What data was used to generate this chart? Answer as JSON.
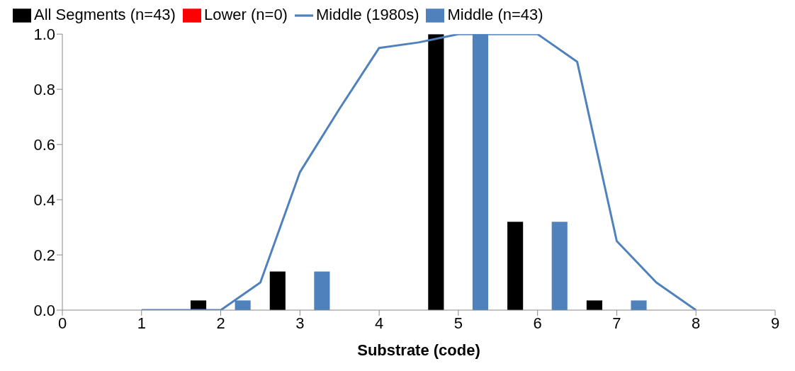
{
  "chart_data": {
    "type": "bar",
    "xlabel": "Substrate (code)",
    "series": [
      {
        "name": "All Segments (n=43)",
        "color": "#000000",
        "x": [
          1.72,
          2.72,
          4.72,
          5.72,
          6.72
        ],
        "values": [
          0.035,
          0.14,
          1.0,
          0.32,
          0.035
        ]
      },
      {
        "name": "Lower (n=0)",
        "color": "#ff0000",
        "x": [
          2,
          3,
          5,
          6,
          7
        ],
        "values": [
          0,
          0,
          0,
          0,
          0
        ]
      },
      {
        "name": "Middle (n=43)",
        "color": "#4f81bd",
        "x": [
          2.28,
          3.28,
          5.28,
          6.28,
          7.28
        ],
        "values": [
          0.035,
          0.14,
          1.0,
          0.32,
          0.035
        ]
      },
      {
        "name": "Middle (1980s)",
        "type": "line",
        "color": "#4f81bd",
        "x": [
          1,
          1.5,
          2,
          2.5,
          3,
          3.5,
          4,
          4.5,
          5,
          5.5,
          6,
          6.5,
          7,
          7.5,
          8
        ],
        "values": [
          0,
          0,
          0,
          0.1,
          0.5,
          0.73,
          0.95,
          0.97,
          1.0,
          1.0,
          1.0,
          0.9,
          0.25,
          0.1,
          0
        ]
      }
    ],
    "xlim": [
      0,
      9
    ],
    "xticks": [
      0,
      1,
      2,
      3,
      4,
      5,
      6,
      7,
      8,
      9
    ],
    "ylim": [
      0,
      1
    ],
    "yticks": [
      {
        "value": 0,
        "label": "0.0"
      },
      {
        "value": 0.2,
        "label": "0.2"
      },
      {
        "value": 0.4,
        "label": "0.4"
      },
      {
        "value": 0.6,
        "label": "0.6"
      },
      {
        "value": 0.8,
        "label": "0.8"
      },
      {
        "value": 1,
        "label": "1.0"
      }
    ],
    "grid": false,
    "legend": "top",
    "marker": "none"
  }
}
